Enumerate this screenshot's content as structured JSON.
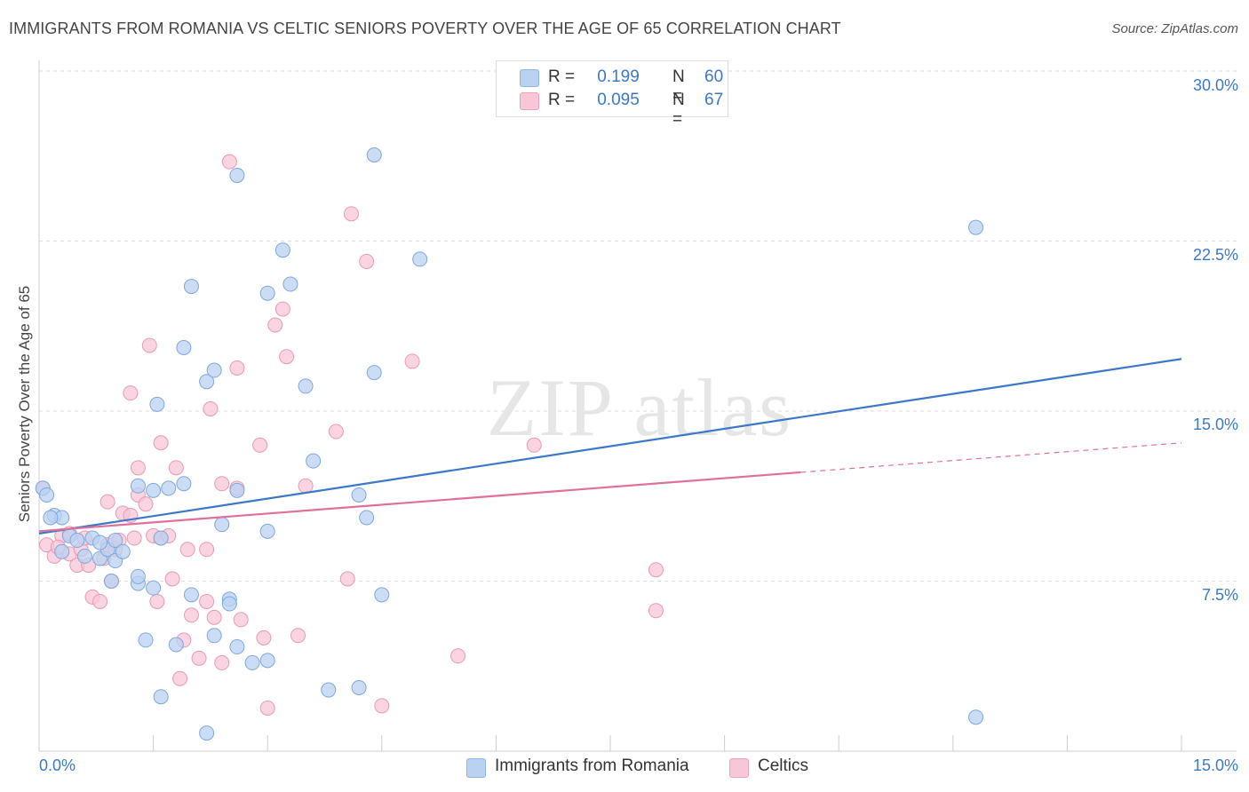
{
  "title": "IMMIGRANTS FROM ROMANIA VS CELTIC SENIORS POVERTY OVER THE AGE OF 65 CORRELATION CHART",
  "source": "Source: ZipAtlas.com",
  "watermark": "ZIPatlas",
  "colors": {
    "blue": "#3a78c8",
    "blue_fill": "#b9d2f2",
    "pink": "#e0709a",
    "pink_fill": "#f8c7d7",
    "grid": "#dddddd",
    "axis_text": "#3a78c8"
  },
  "legend_top": {
    "rows": [
      {
        "r_label": "R =",
        "r_value": "0.199",
        "n_label": "N =",
        "n_value": "60"
      },
      {
        "r_label": "R =",
        "r_value": "0.095",
        "n_label": "N =",
        "n_value": "67"
      }
    ]
  },
  "legend_bottom": [
    "Immigrants from Romania",
    "Celtics"
  ],
  "chart_data": {
    "type": "scatter",
    "title": "IMMIGRANTS FROM ROMANIA VS CELTIC SENIORS POVERTY OVER THE AGE OF 65 CORRELATION CHART",
    "xlabel": "",
    "ylabel": "Seniors Poverty Over the Age of 65",
    "xlim": [
      0,
      15
    ],
    "ylim": [
      0,
      30
    ],
    "x_tick_labels": [
      "0.0%",
      "15.0%"
    ],
    "y_ticks": [
      7.5,
      15,
      22.5,
      30
    ],
    "y_tick_labels": [
      "7.5%",
      "15.0%",
      "22.5%",
      "30.0%"
    ],
    "series": [
      {
        "name": "Immigrants from Romania",
        "color": "#3a78c8",
        "r": 0.199,
        "n": 60,
        "trend": {
          "x": [
            0,
            15
          ],
          "y": [
            9.6,
            17.3
          ],
          "dashed_from": null
        },
        "points": [
          [
            0.05,
            11.6
          ],
          [
            0.1,
            11.3
          ],
          [
            0.2,
            10.4
          ],
          [
            0.3,
            10.3
          ],
          [
            0.3,
            8.8
          ],
          [
            0.4,
            9.5
          ],
          [
            0.5,
            9.3
          ],
          [
            0.6,
            8.6
          ],
          [
            0.7,
            9.4
          ],
          [
            0.8,
            8.5
          ],
          [
            0.9,
            8.9
          ],
          [
            0.95,
            7.5
          ],
          [
            1.0,
            9.3
          ],
          [
            1.0,
            8.4
          ],
          [
            1.1,
            8.8
          ],
          [
            1.3,
            7.4
          ],
          [
            1.3,
            11.7
          ],
          [
            1.3,
            7.7
          ],
          [
            1.4,
            4.9
          ],
          [
            1.5,
            7.2
          ],
          [
            1.5,
            11.5
          ],
          [
            1.55,
            15.3
          ],
          [
            1.6,
            2.4
          ],
          [
            1.6,
            9.4
          ],
          [
            1.7,
            11.6
          ],
          [
            1.8,
            4.7
          ],
          [
            1.9,
            11.8
          ],
          [
            1.9,
            17.8
          ],
          [
            2.0,
            6.9
          ],
          [
            2.0,
            20.5
          ],
          [
            2.2,
            16.3
          ],
          [
            2.2,
            0.8
          ],
          [
            2.3,
            16.8
          ],
          [
            2.3,
            5.1
          ],
          [
            2.4,
            10.0
          ],
          [
            2.5,
            6.7
          ],
          [
            2.6,
            11.5
          ],
          [
            2.6,
            4.6
          ],
          [
            2.6,
            25.4
          ],
          [
            2.8,
            3.9
          ],
          [
            3.0,
            9.7
          ],
          [
            3.0,
            20.2
          ],
          [
            3.0,
            4.0
          ],
          [
            3.2,
            22.1
          ],
          [
            3.3,
            20.6
          ],
          [
            3.5,
            16.1
          ],
          [
            3.6,
            12.8
          ],
          [
            3.8,
            2.7
          ],
          [
            4.2,
            2.8
          ],
          [
            4.2,
            11.3
          ],
          [
            4.3,
            10.3
          ],
          [
            4.4,
            16.7
          ],
          [
            4.4,
            26.3
          ],
          [
            4.5,
            6.9
          ],
          [
            5.0,
            21.7
          ],
          [
            12.3,
            23.1
          ],
          [
            12.3,
            1.5
          ],
          [
            0.15,
            10.3
          ],
          [
            0.8,
            9.2
          ],
          [
            2.5,
            6.5
          ]
        ]
      },
      {
        "name": "Celtics",
        "color": "#e0709a",
        "r": 0.095,
        "n": 67,
        "trend": {
          "x": [
            0,
            15
          ],
          "y": [
            9.7,
            13.6
          ],
          "dashed_from": 10.0
        },
        "points": [
          [
            0.05,
            11.6
          ],
          [
            0.1,
            9.1
          ],
          [
            0.2,
            8.6
          ],
          [
            0.3,
            9.5
          ],
          [
            0.4,
            9.6
          ],
          [
            0.4,
            8.7
          ],
          [
            0.5,
            8.2
          ],
          [
            0.55,
            8.9
          ],
          [
            0.6,
            9.4
          ],
          [
            0.65,
            8.2
          ],
          [
            0.7,
            6.8
          ],
          [
            0.8,
            6.6
          ],
          [
            0.85,
            8.5
          ],
          [
            0.9,
            9.1
          ],
          [
            0.9,
            11.0
          ],
          [
            0.95,
            7.5
          ],
          [
            1.0,
            8.9
          ],
          [
            1.05,
            9.3
          ],
          [
            1.1,
            10.5
          ],
          [
            1.2,
            10.4
          ],
          [
            1.2,
            15.8
          ],
          [
            1.25,
            9.4
          ],
          [
            1.3,
            12.5
          ],
          [
            1.3,
            11.3
          ],
          [
            1.4,
            10.9
          ],
          [
            1.45,
            17.9
          ],
          [
            1.5,
            9.5
          ],
          [
            1.55,
            6.6
          ],
          [
            1.6,
            9.4
          ],
          [
            1.6,
            13.6
          ],
          [
            1.7,
            9.5
          ],
          [
            1.75,
            7.6
          ],
          [
            1.8,
            12.5
          ],
          [
            1.85,
            3.2
          ],
          [
            1.9,
            4.9
          ],
          [
            1.95,
            8.9
          ],
          [
            2.0,
            6.0
          ],
          [
            2.1,
            4.1
          ],
          [
            2.2,
            6.6
          ],
          [
            2.2,
            8.9
          ],
          [
            2.25,
            15.1
          ],
          [
            2.3,
            5.9
          ],
          [
            2.4,
            3.9
          ],
          [
            2.4,
            11.8
          ],
          [
            2.5,
            26.0
          ],
          [
            2.6,
            11.6
          ],
          [
            2.6,
            16.9
          ],
          [
            2.65,
            5.8
          ],
          [
            2.9,
            13.5
          ],
          [
            2.95,
            5.0
          ],
          [
            3.0,
            1.9
          ],
          [
            3.1,
            18.8
          ],
          [
            3.2,
            19.5
          ],
          [
            3.25,
            17.4
          ],
          [
            3.4,
            5.1
          ],
          [
            3.5,
            11.7
          ],
          [
            3.9,
            14.1
          ],
          [
            4.05,
            7.6
          ],
          [
            4.1,
            23.7
          ],
          [
            4.3,
            21.6
          ],
          [
            4.5,
            2.0
          ],
          [
            4.9,
            17.2
          ],
          [
            5.5,
            4.2
          ],
          [
            6.5,
            13.5
          ],
          [
            8.1,
            8.0
          ],
          [
            8.1,
            6.2
          ],
          [
            0.25,
            9.0
          ]
        ]
      }
    ]
  }
}
